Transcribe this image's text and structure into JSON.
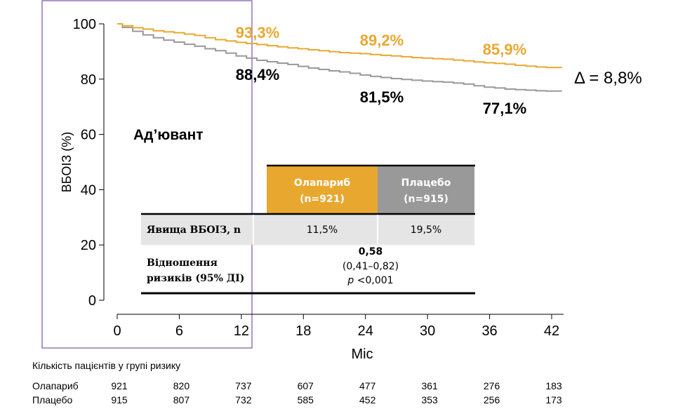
{
  "chart_data": {
    "type": "line",
    "xlabel": "Міс",
    "ylabel": "ВБОІЗ (%)",
    "xlim": [
      0,
      43
    ],
    "ylim": [
      0,
      100
    ],
    "xticks": [
      0,
      6,
      12,
      18,
      24,
      30,
      36,
      42
    ],
    "yticks": [
      0,
      20,
      40,
      60,
      80,
      100
    ],
    "grid": false,
    "colors": {
      "olaparib": "#E8A830",
      "placebo": "#999999",
      "highlight_box": "#7B52A6"
    },
    "series": [
      {
        "name": "Олапариб",
        "x": [
          0,
          1,
          2,
          3,
          4,
          5,
          6,
          7,
          8,
          9,
          10,
          11,
          12,
          13,
          14,
          15,
          16,
          17,
          18,
          19,
          20,
          21,
          22,
          23,
          24,
          25,
          26,
          27,
          28,
          29,
          30,
          31,
          32,
          33,
          34,
          35,
          36,
          37,
          38,
          39,
          40,
          41,
          42,
          43
        ],
        "y": [
          100,
          99.3,
          98.6,
          98.1,
          97.5,
          97.1,
          96.8,
          96.3,
          95.8,
          95.0,
          94.3,
          93.8,
          93.3,
          92.9,
          92.5,
          92.1,
          91.7,
          91.3,
          91.0,
          90.6,
          90.3,
          89.9,
          89.6,
          89.4,
          89.2,
          88.9,
          88.6,
          88.4,
          88.1,
          87.8,
          87.6,
          87.4,
          87.2,
          86.9,
          86.6,
          86.2,
          85.9,
          85.7,
          85.4,
          85.0,
          84.7,
          84.4,
          84.2,
          84.2
        ]
      },
      {
        "name": "Плацебо",
        "x": [
          0,
          1,
          2,
          3,
          4,
          5,
          6,
          7,
          8,
          9,
          10,
          11,
          12,
          13,
          14,
          15,
          16,
          17,
          18,
          19,
          20,
          21,
          22,
          23,
          24,
          25,
          26,
          27,
          28,
          29,
          30,
          31,
          32,
          33,
          34,
          35,
          36,
          37,
          38,
          39,
          40,
          41,
          42,
          43
        ],
        "y": [
          100,
          98.7,
          97.3,
          96.0,
          95.0,
          94.1,
          93.4,
          92.6,
          91.9,
          91.0,
          90.3,
          89.4,
          88.4,
          87.6,
          86.8,
          86.3,
          85.8,
          85.3,
          84.6,
          84.0,
          83.5,
          83.0,
          82.6,
          82.1,
          81.5,
          81.0,
          80.6,
          80.2,
          79.9,
          79.6,
          79.3,
          79.1,
          78.9,
          78.6,
          78.2,
          77.6,
          77.1,
          76.8,
          76.4,
          76.2,
          76.0,
          75.8,
          75.7,
          75.7
        ]
      }
    ],
    "annotations": {
      "olaparib_labels": [
        "93,3%",
        "89,2%",
        "85,9%"
      ],
      "placebo_labels": [
        "88,4%",
        "81,5%",
        "77,1%"
      ],
      "label_months": [
        12,
        24,
        36
      ],
      "delta": "Δ = 8,8%",
      "panel_label": "Ад’ювант"
    },
    "highlight_range_months": [
      -3,
      12.3
    ]
  },
  "table": {
    "headers": [
      {
        "line1": "Олапариб",
        "line2": "(n=921)"
      },
      {
        "line1": "Плацебо",
        "line2": "(n=915)"
      }
    ],
    "row1": {
      "label": "Явища ВБОІЗ, n",
      "olaparib": "11,5%",
      "placebo": "19,5%"
    },
    "row2": {
      "label_line1": "Відношення",
      "label_line2": "ризиків (95% ДІ)",
      "value": "0,58",
      "ci": "(0,41–0,82)",
      "p_label": "p",
      "p_value": " <0,001"
    }
  },
  "risk_table": {
    "title": "Кількість пацієнтів у групі ризику",
    "rows": [
      {
        "label": "Олапариб",
        "values": [
          "921",
          "820",
          "737",
          "607",
          "477",
          "361",
          "276",
          "183"
        ]
      },
      {
        "label": "Плацебо",
        "values": [
          "915",
          "807",
          "732",
          "585",
          "452",
          "353",
          "256",
          "173"
        ]
      }
    ]
  }
}
